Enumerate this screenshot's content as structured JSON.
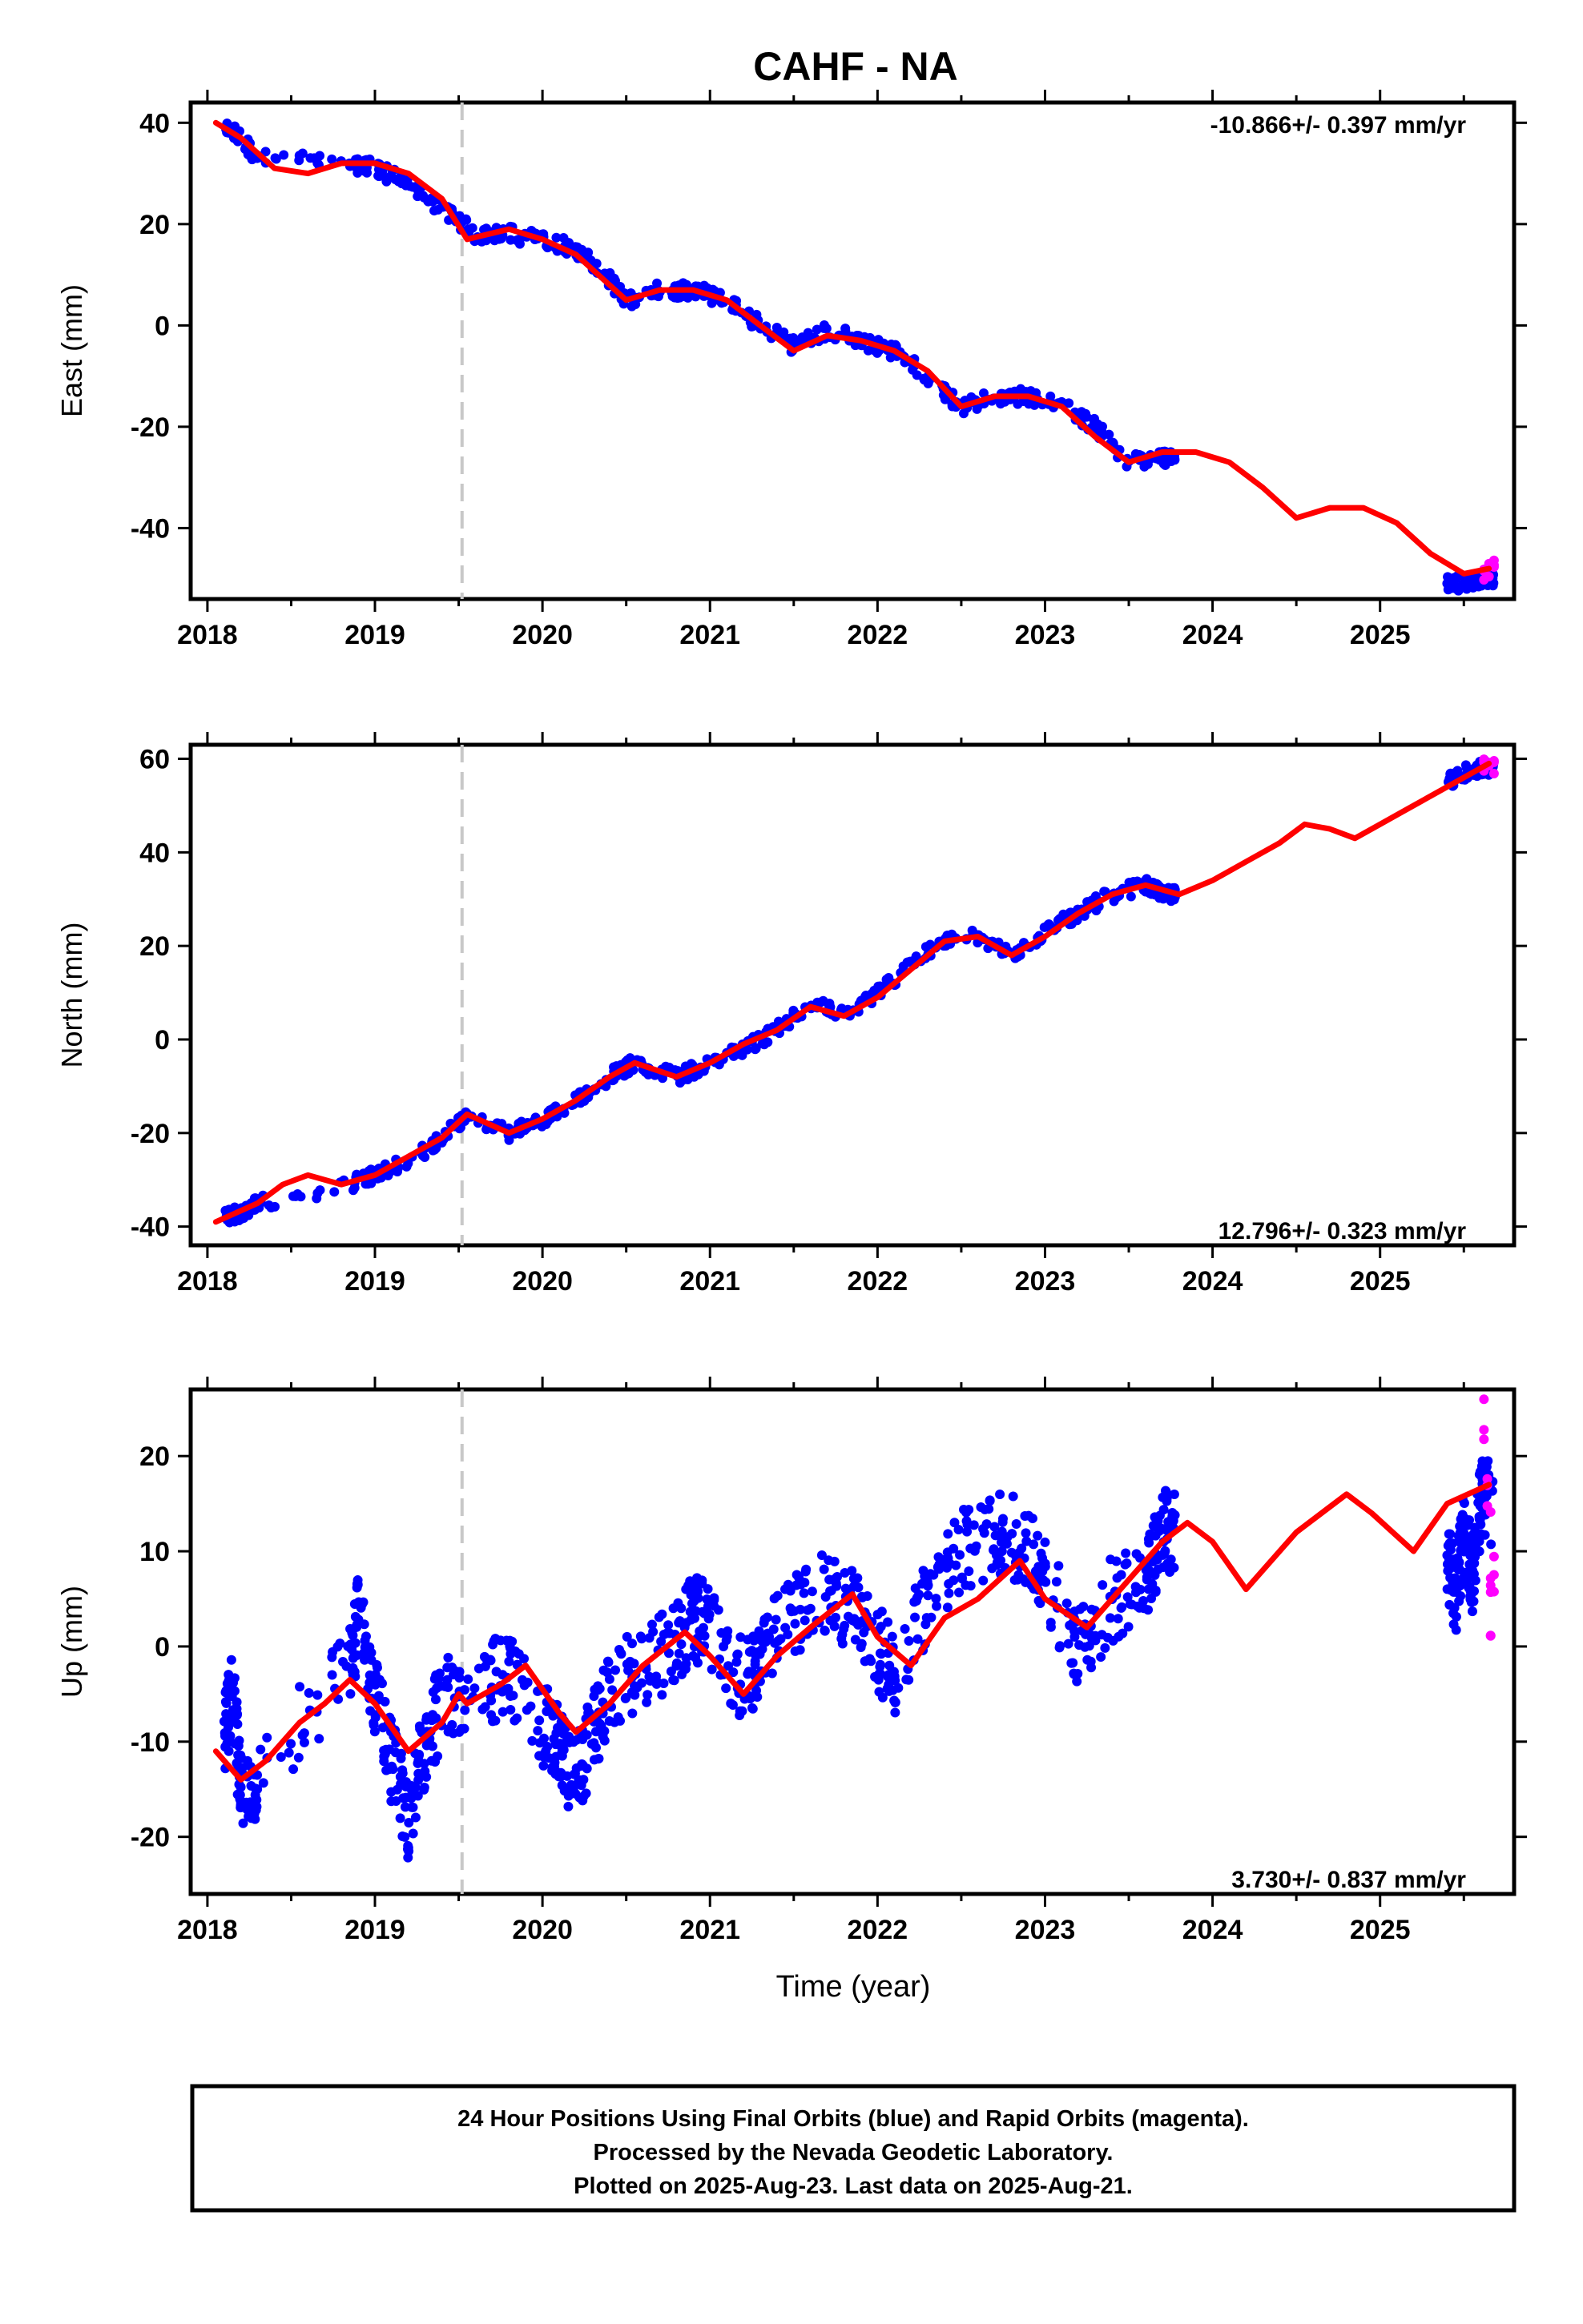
{
  "chart_data": [
    {
      "type": "scatter",
      "title": "CAHF - NA",
      "ylabel": "East (mm)",
      "xlabel": "",
      "xlim": [
        2017.9,
        2025.8
      ],
      "ylim": [
        -54,
        44
      ],
      "x_ticks": [
        "2018",
        "2019",
        "2020",
        "2021",
        "2022",
        "2023",
        "2024",
        "2025"
      ],
      "y_ticks": [
        -40,
        -20,
        0,
        20,
        40
      ],
      "rate_label": "-10.866+/- 0.397 mm/yr",
      "rate_position": "top-right",
      "vertical_marker_x": 2019.52,
      "series": [
        {
          "color": "#0000ff",
          "values_x": [
            2018.1,
            2018.2,
            2018.3,
            2018.85,
            2019.0,
            2019.2,
            2019.4,
            2019.6,
            2019.8,
            2020.0,
            2020.2,
            2020.35,
            2020.5,
            2020.7,
            2020.9,
            2021.1,
            2021.3,
            2021.5,
            2021.7,
            2021.9,
            2022.1,
            2022.3,
            2022.5,
            2022.7,
            2022.9,
            2023.1,
            2023.3,
            2023.5,
            2023.7
          ],
          "values_y": [
            39,
            37,
            33,
            32,
            31,
            28,
            23,
            18,
            18,
            17,
            15,
            11,
            5,
            7,
            7,
            5,
            0,
            -4,
            -1,
            -3,
            -5,
            -10,
            -16,
            -14,
            -14,
            -16,
            -20,
            -27,
            -26
          ]
        },
        {
          "color": "#0000ff",
          "values_x": [
            2025.4,
            2025.5,
            2025.6
          ],
          "values_y": [
            -51,
            -51,
            -50
          ]
        },
        {
          "color": "#ff00ff",
          "values_x": [
            2025.62,
            2025.65,
            2025.68
          ],
          "values_y": [
            -49,
            -48,
            -47
          ]
        }
      ],
      "model_line": {
        "color": "#ff0000",
        "x": [
          2018.05,
          2018.2,
          2018.4,
          2018.6,
          2018.8,
          2019.0,
          2019.2,
          2019.4,
          2019.55,
          2019.8,
          2020.0,
          2020.2,
          2020.4,
          2020.5,
          2020.7,
          2020.9,
          2021.1,
          2021.3,
          2021.5,
          2021.7,
          2021.9,
          2022.1,
          2022.3,
          2022.5,
          2022.7,
          2022.9,
          2023.1,
          2023.3,
          2023.5,
          2023.7,
          2023.9,
          2024.1,
          2024.3,
          2024.5,
          2024.7,
          2024.9,
          2025.1,
          2025.3,
          2025.5,
          2025.65
        ],
        "y": [
          40,
          37,
          31,
          30,
          32,
          32,
          30,
          25,
          17,
          19,
          17,
          14,
          8,
          5,
          7,
          7,
          5,
          0,
          -5,
          -2,
          -3,
          -5,
          -9,
          -16,
          -14,
          -14,
          -16,
          -22,
          -27,
          -25,
          -25,
          -27,
          -32,
          -38,
          -36,
          -36,
          -39,
          -45,
          -49,
          -48
        ]
      }
    },
    {
      "type": "scatter",
      "ylabel": "North (mm)",
      "xlabel": "",
      "xlim": [
        2017.9,
        2025.8
      ],
      "ylim": [
        -44,
        63
      ],
      "x_ticks": [
        "2018",
        "2019",
        "2020",
        "2021",
        "2022",
        "2023",
        "2024",
        "2025"
      ],
      "y_ticks": [
        -40,
        -20,
        0,
        20,
        40,
        60
      ],
      "rate_label": "12.796+/- 0.323 mm/yr",
      "rate_position": "bottom-right",
      "vertical_marker_x": 2019.52,
      "series": [
        {
          "color": "#0000ff",
          "values_x": [
            2018.1,
            2018.2,
            2018.3,
            2018.85,
            2019.0,
            2019.2,
            2019.4,
            2019.55,
            2019.8,
            2020.0,
            2020.2,
            2020.4,
            2020.55,
            2020.8,
            2021.0,
            2021.2,
            2021.4,
            2021.6,
            2021.8,
            2022.0,
            2022.2,
            2022.4,
            2022.6,
            2022.8,
            2023.0,
            2023.2,
            2023.4,
            2023.6,
            2023.7
          ],
          "values_y": [
            -38,
            -37,
            -35,
            -31,
            -29,
            -26,
            -21,
            -16,
            -20,
            -17,
            -13,
            -8,
            -5,
            -8,
            -5,
            -2,
            2,
            8,
            5,
            10,
            16,
            21,
            22,
            18,
            23,
            27,
            31,
            33,
            31
          ]
        },
        {
          "color": "#0000ff",
          "values_x": [
            2025.4,
            2025.5,
            2025.6
          ],
          "values_y": [
            55,
            57,
            58
          ]
        },
        {
          "color": "#ff00ff",
          "values_x": [
            2025.62,
            2025.65,
            2025.68
          ],
          "values_y": [
            59,
            60,
            58
          ]
        }
      ],
      "model_line": {
        "color": "#ff0000",
        "x": [
          2018.05,
          2018.3,
          2018.45,
          2018.6,
          2018.8,
          2019.0,
          2019.2,
          2019.4,
          2019.55,
          2019.8,
          2020.0,
          2020.2,
          2020.4,
          2020.55,
          2020.8,
          2021.0,
          2021.2,
          2021.4,
          2021.6,
          2021.8,
          2022.0,
          2022.2,
          2022.4,
          2022.6,
          2022.8,
          2023.0,
          2023.2,
          2023.4,
          2023.6,
          2023.8,
          2024.0,
          2024.2,
          2024.4,
          2024.55,
          2024.7,
          2024.85,
          2025.0,
          2025.2,
          2025.4,
          2025.65
        ],
        "y": [
          -39,
          -35,
          -31,
          -29,
          -31,
          -29,
          -25,
          -21,
          -16,
          -20,
          -17,
          -13,
          -8,
          -5,
          -8,
          -5,
          -1,
          2,
          7,
          5,
          9,
          15,
          21,
          22,
          18,
          22,
          27,
          31,
          33,
          31,
          34,
          38,
          42,
          46,
          45,
          43,
          46,
          50,
          54,
          59
        ]
      }
    },
    {
      "type": "scatter",
      "ylabel": "Up (mm)",
      "xlabel": "Time (year)",
      "xlim": [
        2017.9,
        2025.8
      ],
      "ylim": [
        -26,
        27
      ],
      "x_ticks": [
        "2018",
        "2019",
        "2020",
        "2021",
        "2022",
        "2023",
        "2024",
        "2025"
      ],
      "y_ticks": [
        -20,
        -10,
        0,
        10,
        20
      ],
      "rate_label": "3.730+/- 0.837 mm/yr",
      "rate_position": "bottom-right",
      "vertical_marker_x": 2019.52,
      "series": [
        {
          "color": "#0000ff",
          "values_x": [
            2018.1,
            2018.15,
            2018.2,
            2018.3,
            2018.85,
            2018.9,
            2019.0,
            2019.1,
            2019.2,
            2019.3,
            2019.4,
            2019.6,
            2019.8,
            2020.0,
            2020.1,
            2020.2,
            2020.3,
            2020.4,
            2020.6,
            2020.8,
            2020.9,
            2021.0,
            2021.2,
            2021.3,
            2021.5,
            2021.7,
            2021.85,
            2022.0,
            2022.1,
            2022.3,
            2022.5,
            2022.7,
            2022.85,
            2023.0,
            2023.2,
            2023.4,
            2023.6,
            2023.7
          ],
          "values_y": [
            -10,
            -5,
            -15,
            -14,
            -2,
            3,
            -5,
            -12,
            -18,
            -10,
            -6,
            -4,
            -3,
            -8,
            -11,
            -14,
            -9,
            -5,
            -2,
            0,
            3,
            2,
            -4,
            -1,
            3,
            6,
            4,
            0,
            -3,
            5,
            10,
            12,
            11,
            7,
            0,
            5,
            7,
            12
          ]
        },
        {
          "color": "#0000ff",
          "values_x": [
            2025.4,
            2025.45,
            2025.5,
            2025.55,
            2025.6
          ],
          "values_y": [
            10,
            5,
            12,
            8,
            15
          ]
        },
        {
          "color": "#ff00ff",
          "values_x": [
            2025.62,
            2025.64,
            2025.66,
            2025.68,
            2025.66
          ],
          "values_y": [
            24,
            14,
            10,
            6,
            3
          ]
        }
      ],
      "model_line": {
        "color": "#ff0000",
        "x": [
          2018.05,
          2018.2,
          2018.35,
          2018.55,
          2018.7,
          2018.85,
          2019.0,
          2019.2,
          2019.4,
          2019.5,
          2019.55,
          2019.75,
          2019.9,
          2020.1,
          2020.2,
          2020.4,
          2020.6,
          2020.85,
          2021.0,
          2021.2,
          2021.4,
          2021.6,
          2021.85,
          2022.0,
          2022.2,
          2022.4,
          2022.6,
          2022.85,
          2023.0,
          2023.25,
          2023.5,
          2023.7,
          2023.85,
          2024.0,
          2024.2,
          2024.5,
          2024.8,
          2024.95,
          2025.2,
          2025.4,
          2025.65
        ],
        "y": [
          -11,
          -14,
          -12,
          -8,
          -6,
          -3.5,
          -6,
          -11,
          -8,
          -5,
          -6,
          -4,
          -2,
          -7,
          -9,
          -6,
          -2,
          1.5,
          -1,
          -5,
          -1,
          2,
          5.5,
          1,
          -2,
          3,
          5,
          9,
          5,
          2,
          7,
          11,
          13,
          11,
          6,
          12,
          16,
          14,
          10,
          15,
          17
        ]
      }
    }
  ],
  "caption": {
    "line1": "24 Hour Positions Using Final Orbits (blue) and Rapid Orbits (magenta).",
    "line2": "Processed by the Nevada Geodetic Laboratory.",
    "line3": "Plotted on 2025-Aug-23. Last data on 2025-Aug-21."
  }
}
